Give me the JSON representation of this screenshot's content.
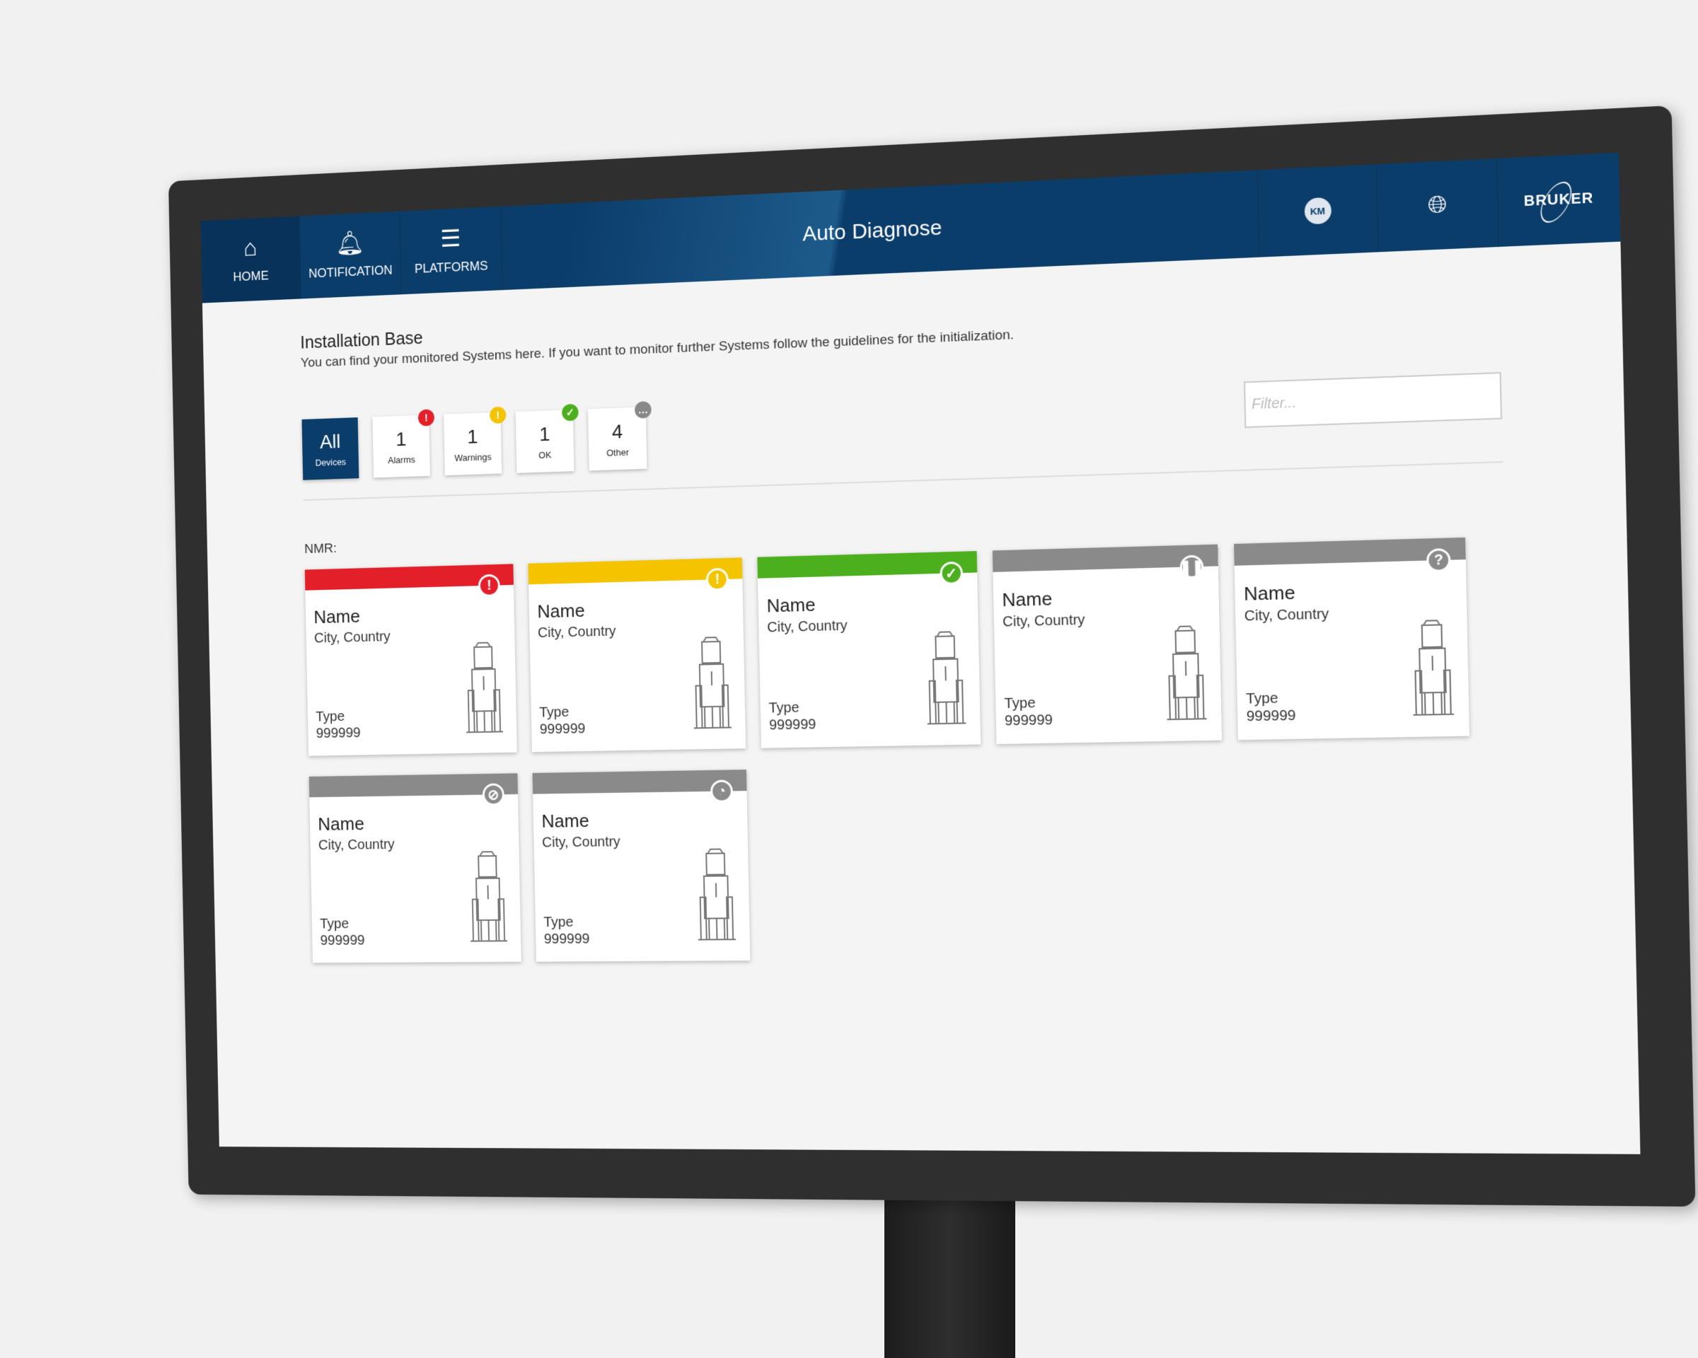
{
  "nav": {
    "tabs": [
      {
        "label": "HOME",
        "icon": "home-icon"
      },
      {
        "label": "NOTIFICATION",
        "icon": "bell-icon"
      },
      {
        "label": "PLATFORMS",
        "icon": "menu-icon"
      }
    ],
    "title": "Auto Diagnose",
    "user_initials": "KM",
    "language_icon": "globe-icon",
    "brand": "BRUKER",
    "color": "#0b3d6b"
  },
  "header": {
    "title": "Installation Base",
    "subtitle": "You can find your monitored Systems here. If you want to monitor further Systems follow the guidelines for the initialization."
  },
  "chips": [
    {
      "value": "All",
      "label": "Devices"
    },
    {
      "value": "1",
      "label": "Alarms",
      "color": "#e3202a"
    },
    {
      "value": "1",
      "label": "Warnings",
      "color": "#f5c400"
    },
    {
      "value": "1",
      "label": "OK",
      "color": "#4caf1e"
    },
    {
      "value": "4",
      "label": "Other",
      "color": "#888888"
    }
  ],
  "filter": {
    "placeholder": "Filter...",
    "value": ""
  },
  "section": "NMR:",
  "cards": [
    {
      "name": "Name",
      "city": "City, Country",
      "type": "Type",
      "number": "999999",
      "status": "alarm",
      "color": "#e3202a",
      "glyph": "!"
    },
    {
      "name": "Name",
      "city": "City, Country",
      "type": "Type",
      "number": "999999",
      "status": "warning",
      "color": "#f5c400",
      "glyph": "!"
    },
    {
      "name": "Name",
      "city": "City, Country",
      "type": "Type",
      "number": "999999",
      "status": "ok",
      "color": "#4caf1e",
      "glyph": "✓"
    },
    {
      "name": "Name",
      "city": "City, Country",
      "type": "Type",
      "number": "999999",
      "status": "paused",
      "color": "#8a8a8a",
      "glyph": "❚❚"
    },
    {
      "name": "Name",
      "city": "City, Country",
      "type": "Type",
      "number": "999999",
      "status": "unknown",
      "color": "#8a8a8a",
      "glyph": "?"
    },
    {
      "name": "Name",
      "city": "City, Country",
      "type": "Type",
      "number": "999999",
      "status": "disabled",
      "color": "#8a8a8a",
      "glyph": "⊘"
    },
    {
      "name": "Name",
      "city": "City, Country",
      "type": "Type",
      "number": "999999",
      "status": "offline",
      "color": "#8a8a8a",
      "glyph": "◔"
    }
  ]
}
